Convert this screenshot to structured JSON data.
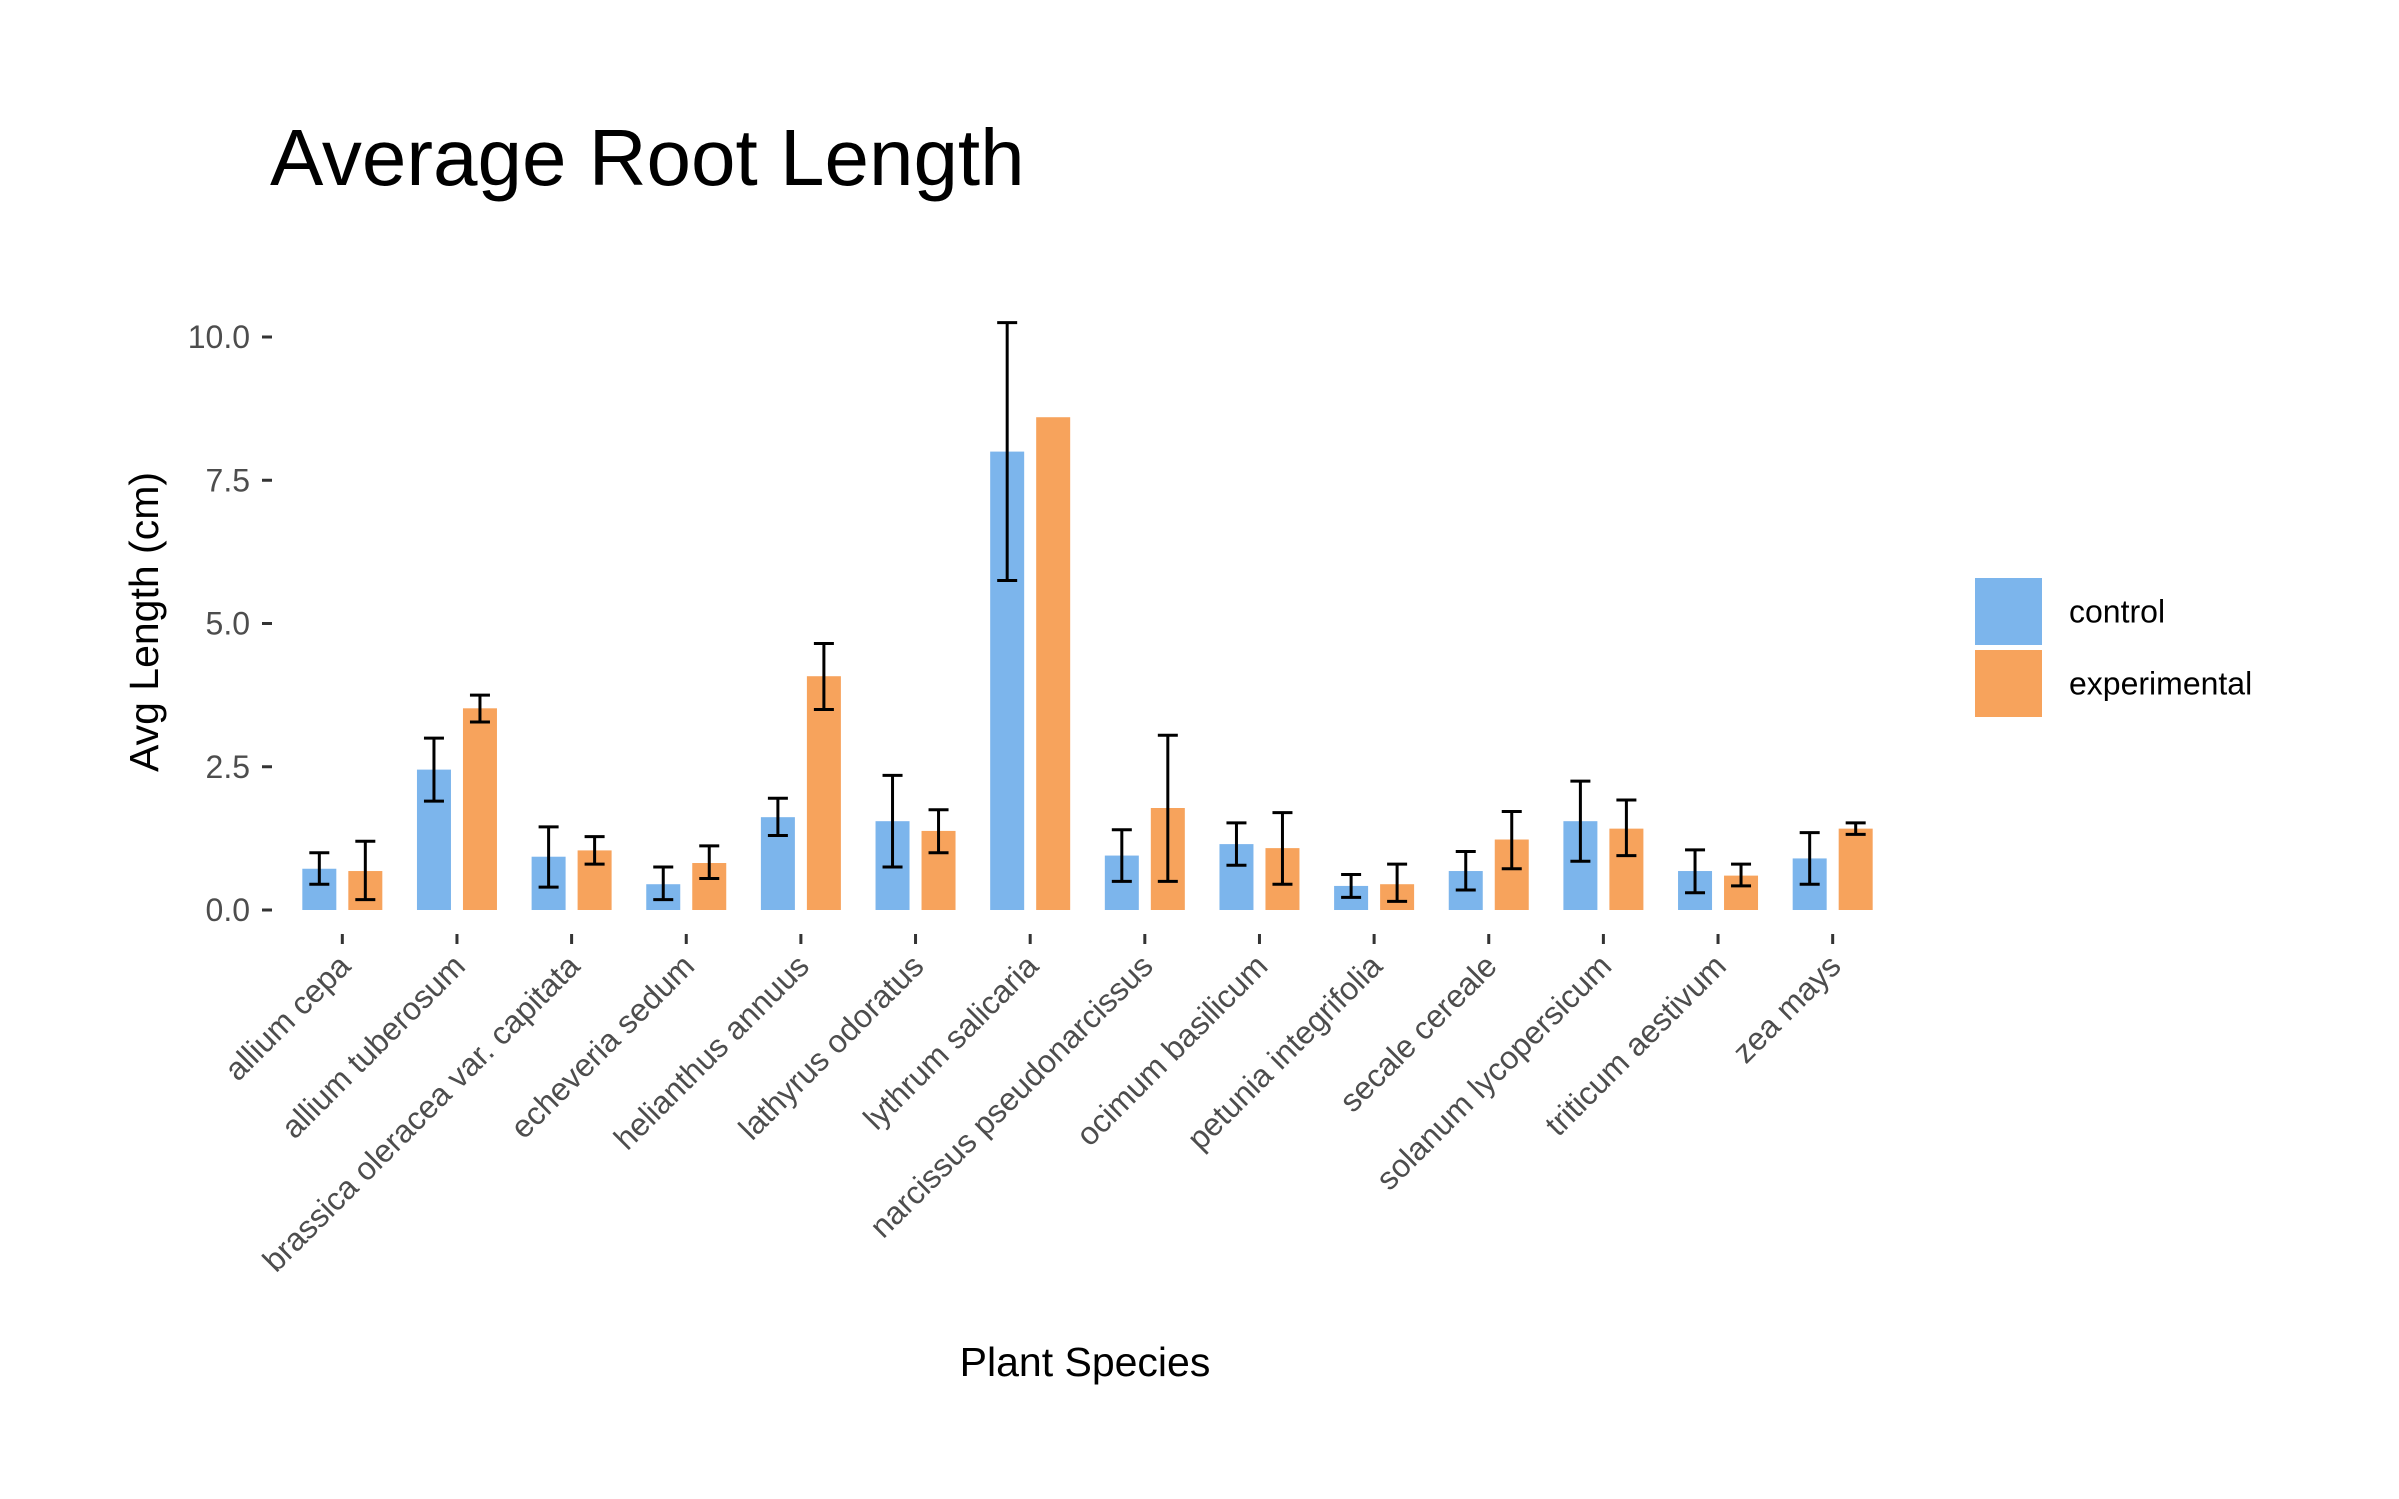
{
  "chart_data": {
    "type": "bar",
    "title": "Average Root Length",
    "xlabel": "Plant Species",
    "ylabel": "Avg Length (cm)",
    "ylim": [
      -0.3,
      10.5
    ],
    "yticks": [
      0,
      2.5,
      5,
      7.5,
      10
    ],
    "ytick_labels": [
      "0.0",
      "2.5",
      "5.0",
      "7.5",
      "10.0"
    ],
    "grid": false,
    "legend_position": "right",
    "categories": [
      "allium cepa",
      "allium tuberosum",
      "brassica oleracea var. capitata",
      "echeveria sedum",
      "helianthus annuus",
      "lathyrus odoratus",
      "lythrum salicaria",
      "narcissus pseudonarcissus",
      "ocimum basilicum",
      "petunia integrifolia",
      "secale cereale",
      "solanum lycopersicum",
      "triticum aestivum",
      "zea mays"
    ],
    "series": [
      {
        "name": "control",
        "color": "#7cb5ec",
        "values": [
          0.72,
          2.45,
          0.93,
          0.45,
          1.62,
          1.55,
          8.0,
          0.95,
          1.15,
          0.42,
          0.68,
          1.55,
          0.68,
          0.9
        ],
        "error_low": [
          0.45,
          1.9,
          0.4,
          0.18,
          1.3,
          0.75,
          5.75,
          0.5,
          0.78,
          0.22,
          0.35,
          0.85,
          0.3,
          0.45
        ],
        "error_high": [
          1.0,
          3.0,
          1.45,
          0.75,
          1.95,
          2.35,
          10.25,
          1.4,
          1.52,
          0.62,
          1.02,
          2.25,
          1.05,
          1.35
        ]
      },
      {
        "name": "experimental",
        "color": "#f7a35c",
        "values": [
          0.68,
          3.52,
          1.04,
          0.82,
          4.08,
          1.38,
          8.6,
          1.78,
          1.08,
          0.45,
          1.23,
          1.42,
          0.6,
          1.42
        ],
        "error_low": [
          0.18,
          3.28,
          0.8,
          0.55,
          3.5,
          1.0,
          null,
          0.5,
          0.45,
          0.15,
          0.72,
          0.95,
          0.42,
          1.32
        ],
        "error_high": [
          1.2,
          3.75,
          1.28,
          1.12,
          4.65,
          1.75,
          null,
          3.05,
          1.7,
          0.8,
          1.72,
          1.92,
          0.8,
          1.52
        ]
      }
    ]
  }
}
